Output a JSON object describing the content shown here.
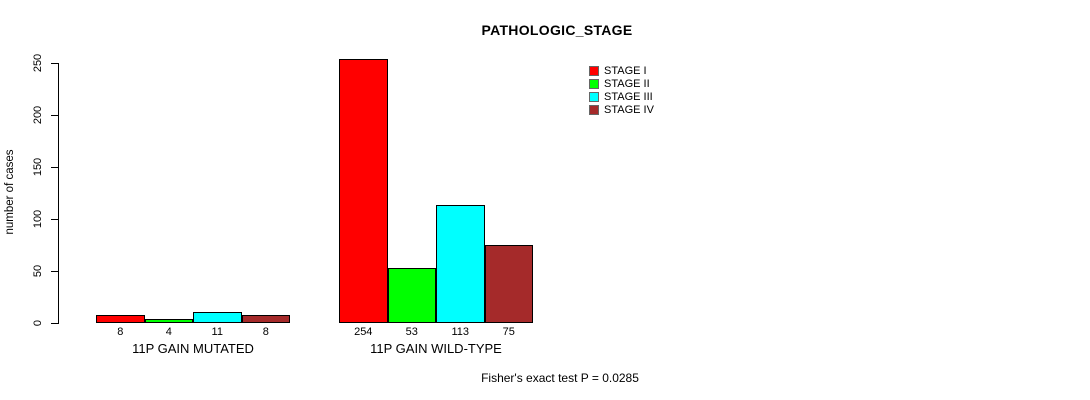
{
  "chart_data": {
    "type": "bar",
    "title": "PATHOLOGIC_STAGE",
    "xlabel": "",
    "ylabel": "number of cases",
    "ylim": [
      0,
      250
    ],
    "yticks": [
      0,
      50,
      100,
      150,
      200,
      250
    ],
    "grid": false,
    "legend_position": "top-right",
    "categories": [
      "11P GAIN MUTATED",
      "11P GAIN WILD-TYPE"
    ],
    "series": [
      {
        "name": "STAGE I",
        "color": "#ff0000",
        "values": [
          8,
          254
        ]
      },
      {
        "name": "STAGE II",
        "color": "#00ff00",
        "values": [
          4,
          53
        ]
      },
      {
        "name": "STAGE III",
        "color": "#00ffff",
        "values": [
          11,
          113
        ]
      },
      {
        "name": "STAGE IV",
        "color": "#a52a2a",
        "values": [
          8,
          75
        ]
      }
    ],
    "bar_value_labels": {
      "11P GAIN MUTATED": [
        "8",
        "4",
        "11",
        "8"
      ],
      "11P GAIN WILD-TYPE": [
        "254",
        "53",
        "113",
        "75"
      ]
    },
    "annotation": "Fisher's exact test P = 0.0285"
  },
  "colors": {
    "axis": "#000000",
    "text": "#000000",
    "background": "#ffffff"
  }
}
